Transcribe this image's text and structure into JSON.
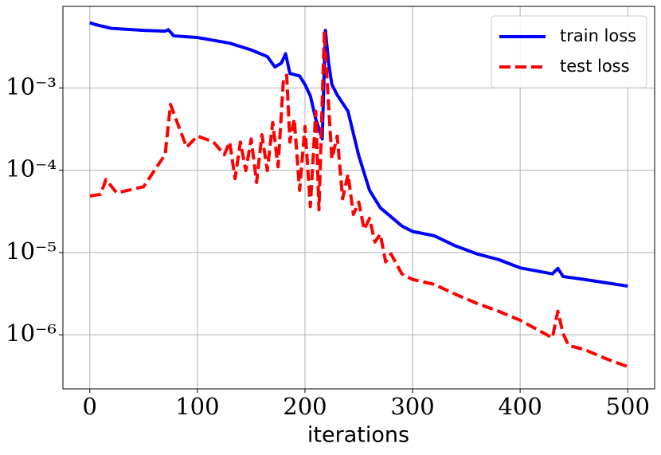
{
  "chart_data": {
    "type": "line",
    "xlabel": "iterations",
    "yscale": "log",
    "grid": true,
    "legend": "upper right",
    "xlim": [
      -25,
      525
    ],
    "xticks": [
      0,
      100,
      200,
      300,
      400,
      500
    ],
    "ylim": [
      2.2e-07,
      0.0098
    ],
    "yticks": [
      {
        "value": 1e-06,
        "label": "10⁻⁶"
      },
      {
        "value": 1e-05,
        "label": "10⁻⁵"
      },
      {
        "value": 0.0001,
        "label": "10⁻⁴"
      },
      {
        "value": 0.001,
        "label": "10⁻³"
      }
    ],
    "series": [
      {
        "name": "train loss",
        "color": "#0000ff",
        "dash": "solid",
        "x": [
          0,
          5,
          20,
          50,
          70,
          73,
          78,
          100,
          130,
          150,
          165,
          172,
          178,
          182,
          186,
          195,
          200,
          205,
          210,
          216,
          219,
          222,
          225,
          230,
          240,
          250,
          260,
          270,
          290,
          300,
          320,
          340,
          360,
          380,
          400,
          430,
          435,
          440,
          460,
          500
        ],
        "values": [
          0.0062,
          0.0059,
          0.0053,
          0.005,
          0.0049,
          0.0051,
          0.0043,
          0.0041,
          0.0035,
          0.0029,
          0.0024,
          0.0018,
          0.002,
          0.0026,
          0.0015,
          0.0014,
          0.0011,
          0.0008,
          0.00042,
          0.00024,
          0.005,
          0.002,
          0.0011,
          0.00082,
          0.00052,
          0.00015,
          5.7e-05,
          3.5e-05,
          2.1e-05,
          1.8e-05,
          1.6e-05,
          1.2e-05,
          9.6e-06,
          8.2e-06,
          6.5e-06,
          5.5e-06,
          6.4e-06,
          5.1e-06,
          4.7e-06,
          3.9e-06
        ]
      },
      {
        "name": "test loss",
        "color": "#ff0000",
        "dash": "dashed",
        "x": [
          0,
          10,
          15,
          25,
          50,
          65,
          70,
          75,
          80,
          90,
          100,
          115,
          125,
          130,
          135,
          140,
          145,
          150,
          155,
          160,
          165,
          170,
          175,
          180,
          183,
          186,
          190,
          195,
          200,
          205,
          210,
          213,
          218,
          221,
          225,
          230,
          235,
          240,
          245,
          250,
          255,
          260,
          265,
          270,
          275,
          280,
          290,
          300,
          320,
          340,
          360,
          380,
          400,
          420,
          430,
          435,
          440,
          445,
          460,
          480,
          500
        ],
        "values": [
          4.85e-05,
          5.1e-05,
          7.7e-05,
          5.3e-05,
          6.3e-05,
          0.000124,
          0.000154,
          0.00063,
          0.00042,
          0.00019,
          0.00026,
          0.00022,
          0.000154,
          0.00022,
          7.9e-05,
          0.00022,
          9.9e-05,
          0.00024,
          7.1e-05,
          0.00027,
          9.9e-05,
          0.00038,
          0.00011,
          0.00128,
          0.00143,
          0.00022,
          0.00042,
          5.7e-05,
          0.00034,
          3.6e-05,
          0.00052,
          3.3e-05,
          0.0049,
          0.001,
          0.000138,
          0.00026,
          4.5e-05,
          8.9e-05,
          2.9e-05,
          4.1e-05,
          1.9e-05,
          2.6e-05,
          1.34e-05,
          1.67e-05,
          7.7e-06,
          9.6e-06,
          5.5e-06,
          4.7e-06,
          4.1e-06,
          3.1e-06,
          2.4e-06,
          1.93e-06,
          1.5e-06,
          1.08e-06,
          9.2e-07,
          1.93e-06,
          1.03e-06,
          7.4e-07,
          6.6e-07,
          5.1e-07,
          4.1e-07
        ]
      }
    ]
  }
}
